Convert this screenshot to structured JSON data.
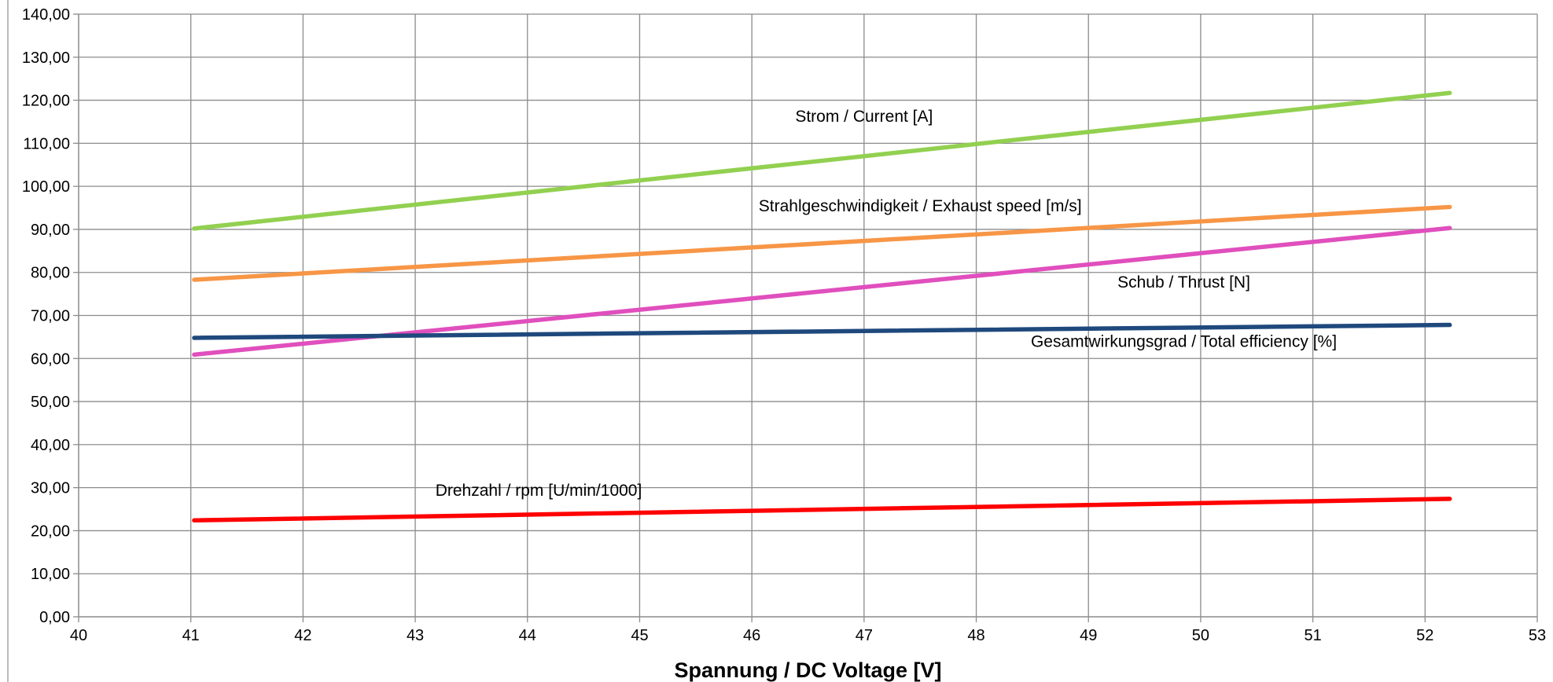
{
  "chart_data": {
    "type": "line",
    "xlabel": "Spannung / DC Voltage [V]",
    "ylabel": "",
    "xlim": [
      40,
      53
    ],
    "ylim": [
      0,
      140
    ],
    "x_ticks": [
      "40",
      "41",
      "42",
      "43",
      "44",
      "45",
      "46",
      "47",
      "48",
      "49",
      "50",
      "51",
      "52",
      "53"
    ],
    "y_ticks": [
      "0,00",
      "10,00",
      "20,00",
      "30,00",
      "40,00",
      "50,00",
      "60,00",
      "70,00",
      "80,00",
      "90,00",
      "100,00",
      "110,00",
      "120,00",
      "130,00",
      "140,00"
    ],
    "grid": true,
    "legend": "none",
    "series": [
      {
        "name": "Strom / Current [A]",
        "color": "#92d050",
        "x": [
          41.03,
          52.22
        ],
        "y": [
          90.2,
          121.7
        ],
        "label_at": [
          47.0,
          115.0
        ]
      },
      {
        "name": "Strahlgeschwindigkeit / Exhaust speed [m/s]",
        "color": "#f79646",
        "x": [
          41.03,
          52.22
        ],
        "y": [
          78.3,
          95.2
        ],
        "label_at": [
          47.5,
          94.2
        ]
      },
      {
        "name": "Schub / Thrust [N]",
        "color": "#e04fbd",
        "x": [
          41.03,
          52.22
        ],
        "y": [
          60.9,
          90.3
        ],
        "label_at": [
          49.85,
          76.5
        ]
      },
      {
        "name": "Gesamtwirkungsgrad / Total efficiency [%]",
        "color": "#1f497d",
        "x": [
          41.03,
          52.22
        ],
        "y": [
          64.8,
          67.8
        ],
        "label_at": [
          49.85,
          62.7
        ]
      },
      {
        "name": "Drehzahl / rpm [U/min/1000]",
        "color": "#ff0000",
        "x": [
          41.03,
          52.22
        ],
        "y": [
          22.4,
          27.4
        ],
        "label_at": [
          44.1,
          28.1
        ]
      }
    ]
  }
}
